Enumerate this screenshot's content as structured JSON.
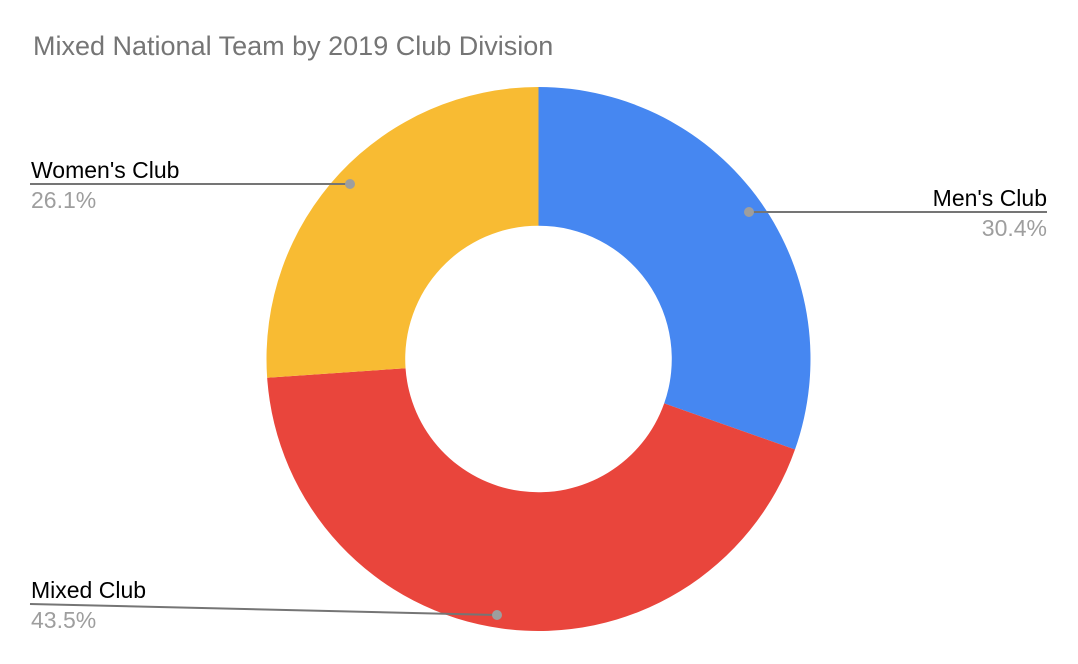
{
  "chart": {
    "title": "Mixed National Team by 2019 Club Division",
    "title_color": "#757575",
    "background_color": "#ffffff"
  },
  "chart_data": {
    "type": "pie",
    "subtype": "donut",
    "title": "Mixed National Team by 2019 Club Division",
    "start_angle_deg": 0,
    "direction": "clockwise",
    "inner_radius_ratio": 0.49,
    "legend_position": "outside-callout-labels",
    "slices": [
      {
        "label": "Men's Club",
        "value_pct": 30.4,
        "color": "#4687F1"
      },
      {
        "label": "Mixed Club",
        "value_pct": 43.5,
        "color": "#E9453C"
      },
      {
        "label": "Women's Club",
        "value_pct": 26.1,
        "color": "#F8BB33"
      }
    ]
  },
  "callouts": {
    "womens": {
      "label": "Women's Club",
      "pct": "26.1%"
    },
    "mens": {
      "label": "Men's Club",
      "pct": "30.4%"
    },
    "mixed": {
      "label": "Mixed Club",
      "pct": "43.5%"
    }
  },
  "colors": {
    "label_text": "#000000",
    "percent_text": "#9e9e9e",
    "leader_line": "#757575",
    "leader_dot": "#9e9e9e"
  }
}
